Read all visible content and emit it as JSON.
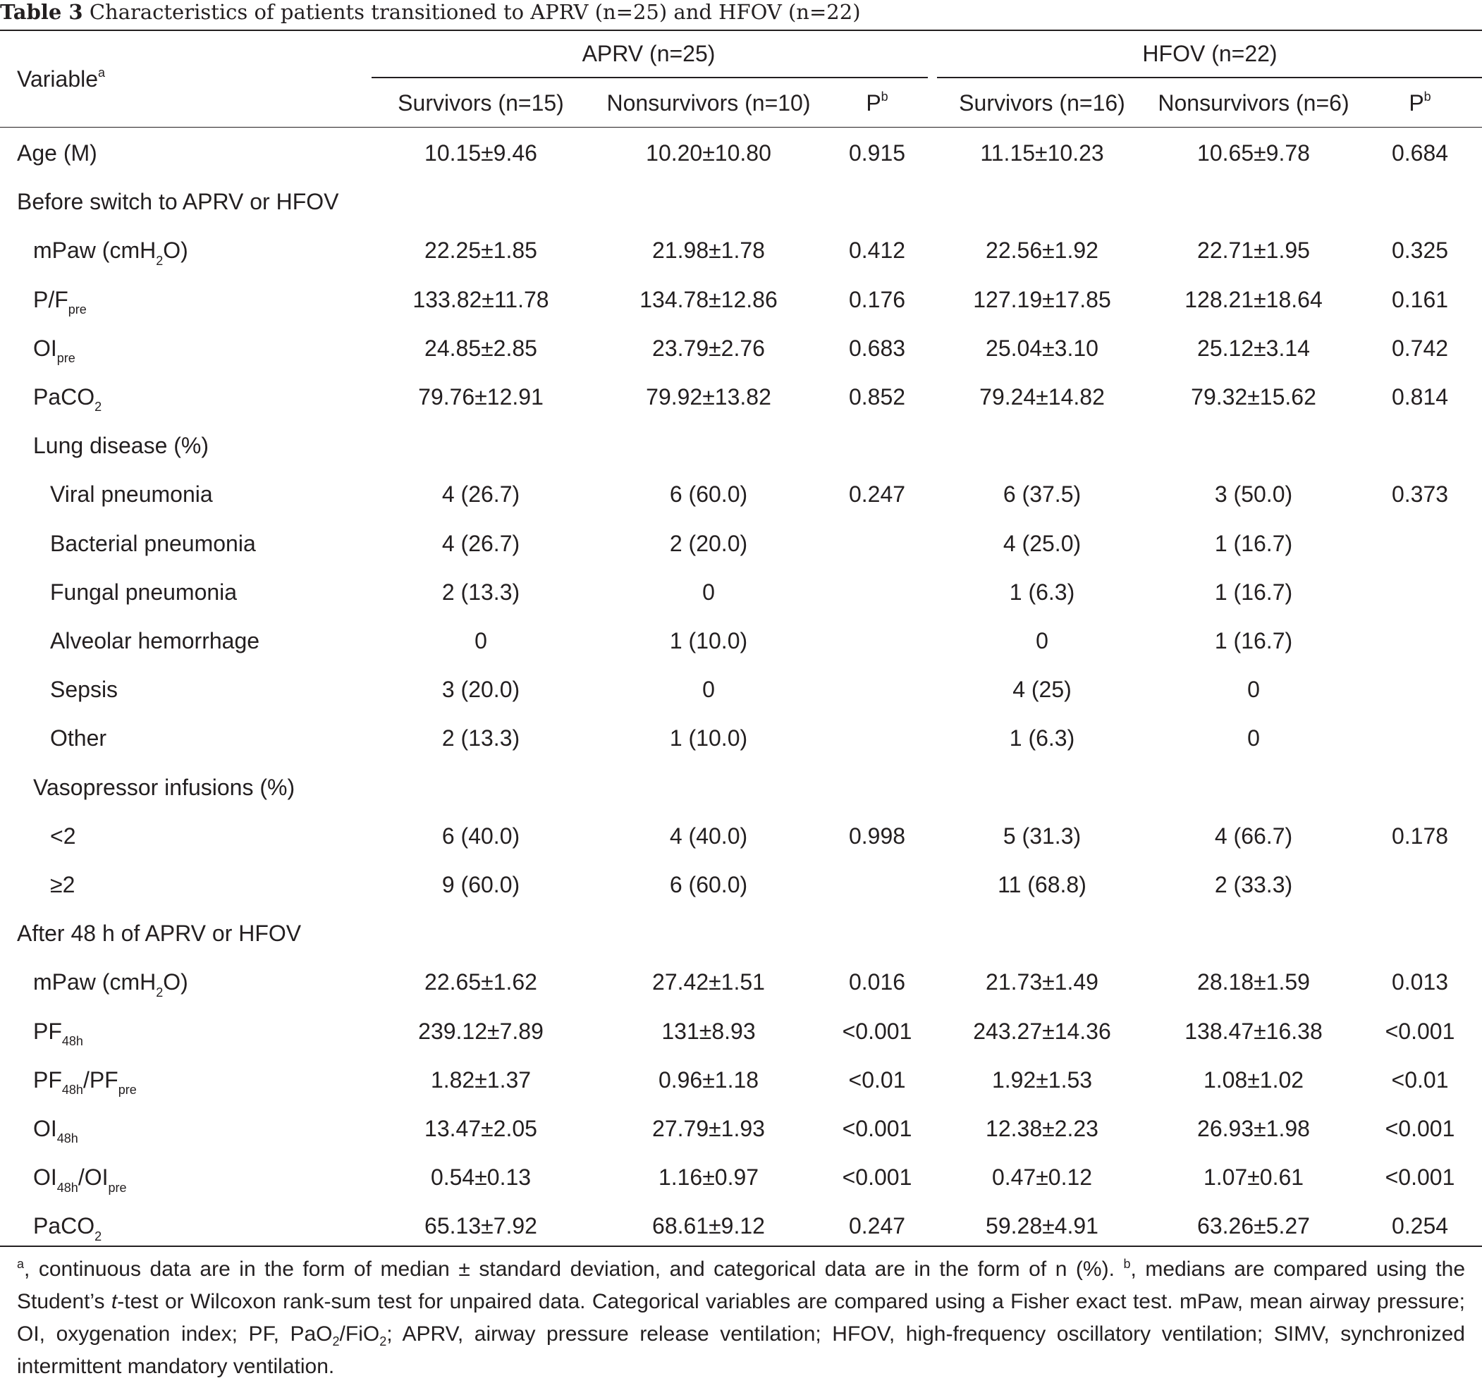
{
  "caption": {
    "label": "Table 3",
    "text": "Characteristics of patients transitioned to APRV (n=25) and HFOV (n=22)"
  },
  "header": {
    "variable": {
      "text": "Variable",
      "sup": "a"
    },
    "groups": [
      "APRV (n=25)",
      "HFOV (n=22)"
    ],
    "subcols": [
      {
        "text": "Survivors (n=15)"
      },
      {
        "text": "Nonsurvivors (n=10)"
      },
      {
        "text": "P",
        "sup": "b"
      },
      {
        "text": "Survivors (n=16)"
      },
      {
        "text": "Nonsurvivors (n=6)"
      },
      {
        "text": "P",
        "sup": "b"
      }
    ]
  },
  "rows": [
    {
      "label": [
        {
          "t": "Age (M)"
        }
      ],
      "indent": 0,
      "values": [
        "10.15±9.46",
        "10.20±10.80",
        "0.915",
        "11.15±10.23",
        "10.65±9.78",
        "0.684"
      ]
    },
    {
      "label": [
        {
          "t": "Before switch to APRV or HFOV"
        }
      ],
      "indent": 0,
      "values": [
        "",
        "",
        "",
        "",
        "",
        ""
      ]
    },
    {
      "label": [
        {
          "t": "mPaw (cmH"
        },
        {
          "sub": "2"
        },
        {
          "t": "O)"
        }
      ],
      "indent": 1,
      "values": [
        "22.25±1.85",
        "21.98±1.78",
        "0.412",
        "22.56±1.92",
        "22.71±1.95",
        "0.325"
      ]
    },
    {
      "label": [
        {
          "t": "P/F"
        },
        {
          "sub": "pre"
        }
      ],
      "indent": 1,
      "values": [
        "133.82±11.78",
        "134.78±12.86",
        "0.176",
        "127.19±17.85",
        "128.21±18.64",
        "0.161"
      ]
    },
    {
      "label": [
        {
          "t": "OI"
        },
        {
          "sub": "pre"
        }
      ],
      "indent": 1,
      "values": [
        "24.85±2.85",
        "23.79±2.76",
        "0.683",
        "25.04±3.10",
        "25.12±3.14",
        "0.742"
      ]
    },
    {
      "label": [
        {
          "t": "PaCO"
        },
        {
          "sub": "2"
        }
      ],
      "indent": 1,
      "values": [
        "79.76±12.91",
        "79.92±13.82",
        "0.852",
        "79.24±14.82",
        "79.32±15.62",
        "0.814"
      ]
    },
    {
      "label": [
        {
          "t": "Lung disease (%)"
        }
      ],
      "indent": 1,
      "values": [
        "",
        "",
        "",
        "",
        "",
        ""
      ]
    },
    {
      "label": [
        {
          "t": "Viral pneumonia"
        }
      ],
      "indent": 2,
      "values": [
        "4 (26.7)",
        "6 (60.0)",
        "0.247",
        "6 (37.5)",
        "3 (50.0)",
        "0.373"
      ]
    },
    {
      "label": [
        {
          "t": "Bacterial pneumonia"
        }
      ],
      "indent": 2,
      "values": [
        "4 (26.7)",
        "2 (20.0)",
        "",
        "4 (25.0)",
        "1 (16.7)",
        ""
      ]
    },
    {
      "label": [
        {
          "t": "Fungal pneumonia"
        }
      ],
      "indent": 2,
      "values": [
        "2 (13.3)",
        "0",
        "",
        "1 (6.3)",
        "1 (16.7)",
        ""
      ]
    },
    {
      "label": [
        {
          "t": "Alveolar hemorrhage"
        }
      ],
      "indent": 2,
      "values": [
        "0",
        "1 (10.0)",
        "",
        "0",
        "1 (16.7)",
        ""
      ]
    },
    {
      "label": [
        {
          "t": "Sepsis"
        }
      ],
      "indent": 2,
      "values": [
        "3 (20.0)",
        "0",
        "",
        "4 (25)",
        "0",
        ""
      ]
    },
    {
      "label": [
        {
          "t": "Other"
        }
      ],
      "indent": 2,
      "values": [
        "2 (13.3)",
        "1 (10.0)",
        "",
        "1 (6.3)",
        "0",
        ""
      ]
    },
    {
      "label": [
        {
          "t": "Vasopressor infusions (%)"
        }
      ],
      "indent": 1,
      "values": [
        "",
        "",
        "",
        "",
        "",
        ""
      ]
    },
    {
      "label": [
        {
          "t": "<2"
        }
      ],
      "indent": 2,
      "values": [
        "6 (40.0)",
        "4 (40.0)",
        "0.998",
        "5 (31.3)",
        "4 (66.7)",
        "0.178"
      ]
    },
    {
      "label": [
        {
          "t": "≥2"
        }
      ],
      "indent": 2,
      "values": [
        "9 (60.0)",
        "6 (60.0)",
        "",
        "11 (68.8)",
        "2 (33.3)",
        ""
      ]
    },
    {
      "label": [
        {
          "t": "After 48 h of APRV or HFOV"
        }
      ],
      "indent": 0,
      "values": [
        "",
        "",
        "",
        "",
        "",
        ""
      ]
    },
    {
      "label": [
        {
          "t": "mPaw (cmH"
        },
        {
          "sub": "2"
        },
        {
          "t": "O)"
        }
      ],
      "indent": 1,
      "values": [
        "22.65±1.62",
        "27.42±1.51",
        "0.016",
        "21.73±1.49",
        "28.18±1.59",
        "0.013"
      ]
    },
    {
      "label": [
        {
          "t": "PF"
        },
        {
          "sub": "48h"
        }
      ],
      "indent": 1,
      "values": [
        "239.12±7.89",
        "131±8.93",
        "<0.001",
        "243.27±14.36",
        "138.47±16.38",
        "<0.001"
      ]
    },
    {
      "label": [
        {
          "t": "PF"
        },
        {
          "sub": "48h"
        },
        {
          "t": "/PF"
        },
        {
          "sub": "pre"
        }
      ],
      "indent": 1,
      "values": [
        "1.82±1.37",
        "0.96±1.18",
        "<0.01",
        "1.92±1.53",
        "1.08±1.02",
        "<0.01"
      ]
    },
    {
      "label": [
        {
          "t": "OI"
        },
        {
          "sub": "48h"
        }
      ],
      "indent": 1,
      "values": [
        "13.47±2.05",
        "27.79±1.93",
        "<0.001",
        "12.38±2.23",
        "26.93±1.98",
        "<0.001"
      ]
    },
    {
      "label": [
        {
          "t": "OI"
        },
        {
          "sub": "48h"
        },
        {
          "t": "/OI"
        },
        {
          "sub": "pre"
        }
      ],
      "indent": 1,
      "values": [
        "0.54±0.13",
        "1.16±0.97",
        "<0.001",
        "0.47±0.12",
        "1.07±0.61",
        "<0.001"
      ]
    },
    {
      "label": [
        {
          "t": "PaCO"
        },
        {
          "sub": "2"
        }
      ],
      "indent": 1,
      "values": [
        "65.13±7.92",
        "68.61±9.12",
        "0.247",
        "59.28±4.91",
        "63.26±5.27",
        "0.254"
      ]
    }
  ],
  "footnote": [
    {
      "sup": "a"
    },
    {
      "t": ", continuous data are in the form of median ± standard deviation, and categorical data are in the form of n (%). "
    },
    {
      "sup": "b"
    },
    {
      "t": ", medians are compared using the Student’s "
    },
    {
      "i": "t"
    },
    {
      "t": "-test or Wilcoxon rank-sum test for unpaired data. Categorical variables are compared using a Fisher exact test. mPaw, mean airway pressure; OI, oxygenation index; PF, PaO"
    },
    {
      "sub": "2"
    },
    {
      "t": "/FiO"
    },
    {
      "sub": "2"
    },
    {
      "t": "; APRV, airway pressure release ventilation; HFOV, high-frequency oscillatory ventilation; SIMV, synchronized intermittent mandatory ventilation."
    }
  ]
}
